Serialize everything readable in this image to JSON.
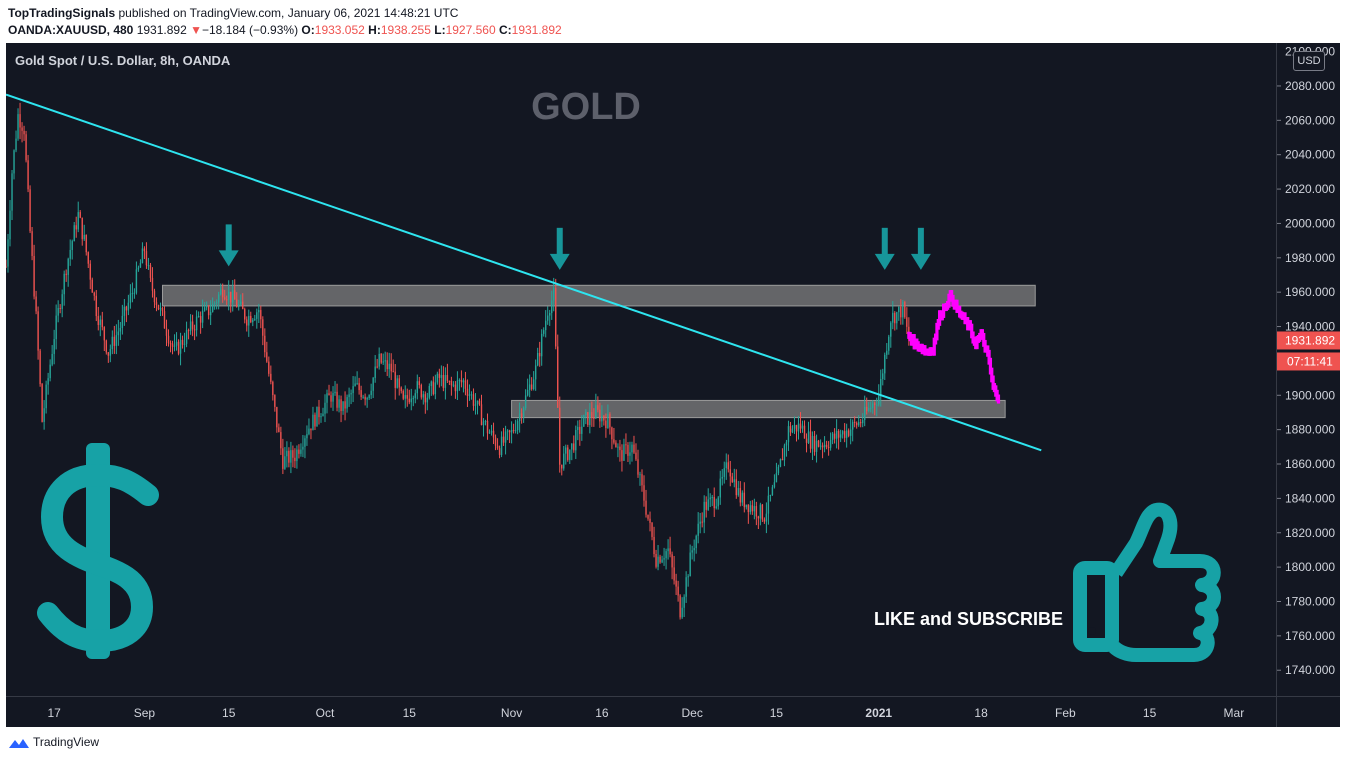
{
  "header": {
    "author": "TopTradingSignals",
    "published": "published on TradingView.com, January 06, 2021 14:48:21 UTC",
    "symbol": "OANDA:XAUUSD, 480",
    "last": "1931.892",
    "change_arrow": "▼",
    "change": "−18.184 (−0.93%)",
    "o_label": "O:",
    "o_value": "1933.052",
    "h_label": "H:",
    "h_value": "1938.255",
    "l_label": "L:",
    "l_value": "1927.560",
    "c_label": "C:",
    "c_value": "1931.892"
  },
  "chart_title": "Gold Spot / U.S. Dollar, 8h, OANDA",
  "currency_button": "USD",
  "footer_brand": "TradingView",
  "colors": {
    "background": "#131722",
    "up": "#26a69a",
    "down": "#ef5350",
    "trendline": "#2ee5f0",
    "projection": "#ff00ff",
    "arrow": "#17969a",
    "zone": "#808080",
    "price_label": "#ef5350"
  },
  "chart_data": {
    "type": "candlestick",
    "title": "GOLD",
    "y_range": [
      1725,
      2105
    ],
    "y_ticks": [
      "1740.000",
      "1760.000",
      "1780.000",
      "1800.000",
      "1820.000",
      "1840.000",
      "1860.000",
      "1880.000",
      "1900.000",
      "1920.000",
      "1940.000",
      "1960.000",
      "1980.000",
      "2000.000",
      "2020.000",
      "2040.000",
      "2060.000",
      "2080.000"
    ],
    "y_top_partial": "2100.000",
    "x_range": [
      "2020-08-09",
      "2021-03-08"
    ],
    "x_ticks": [
      {
        "label": "17",
        "date": "2020-08-17"
      },
      {
        "label": "Sep",
        "date": "2020-09-01"
      },
      {
        "label": "15",
        "date": "2020-09-15"
      },
      {
        "label": "Oct",
        "date": "2020-10-01"
      },
      {
        "label": "15",
        "date": "2020-10-15"
      },
      {
        "label": "Nov",
        "date": "2020-11-01"
      },
      {
        "label": "16",
        "date": "2020-11-16"
      },
      {
        "label": "Dec",
        "date": "2020-12-01"
      },
      {
        "label": "15",
        "date": "2020-12-15"
      },
      {
        "label": "2021",
        "date": "2021-01-01"
      },
      {
        "label": "18",
        "date": "2021-01-18"
      },
      {
        "label": "Feb",
        "date": "2021-02-01"
      },
      {
        "label": "15",
        "date": "2021-02-15"
      },
      {
        "label": "Mar",
        "date": "2021-03-01"
      }
    ],
    "price_path": [
      [
        "2020-08-09",
        1975
      ],
      [
        "2020-08-10",
        2030
      ],
      [
        "2020-08-11",
        2063
      ],
      [
        "2020-08-12",
        2055
      ],
      [
        "2020-08-13",
        1995
      ],
      [
        "2020-08-14",
        1945
      ],
      [
        "2020-08-15",
        1885
      ],
      [
        "2020-08-17",
        1935
      ],
      [
        "2020-08-19",
        1975
      ],
      [
        "2020-08-21",
        2005
      ],
      [
        "2020-08-22",
        1990
      ],
      [
        "2020-08-24",
        1950
      ],
      [
        "2020-08-26",
        1925
      ],
      [
        "2020-08-28",
        1940
      ],
      [
        "2020-08-30",
        1960
      ],
      [
        "2020-09-01",
        1985
      ],
      [
        "2020-09-02",
        1965
      ],
      [
        "2020-09-04",
        1945
      ],
      [
        "2020-09-06",
        1925
      ],
      [
        "2020-09-08",
        1935
      ],
      [
        "2020-09-10",
        1945
      ],
      [
        "2020-09-12",
        1950
      ],
      [
        "2020-09-14",
        1962
      ],
      [
        "2020-09-16",
        1955
      ],
      [
        "2020-09-18",
        1945
      ],
      [
        "2020-09-20",
        1950
      ],
      [
        "2020-09-22",
        1905
      ],
      [
        "2020-09-24",
        1862
      ],
      [
        "2020-09-26",
        1865
      ],
      [
        "2020-09-28",
        1880
      ],
      [
        "2020-09-30",
        1890
      ],
      [
        "2020-10-02",
        1900
      ],
      [
        "2020-10-04",
        1892
      ],
      [
        "2020-10-06",
        1905
      ],
      [
        "2020-10-08",
        1900
      ],
      [
        "2020-10-10",
        1920
      ],
      [
        "2020-10-12",
        1915
      ],
      [
        "2020-10-14",
        1895
      ],
      [
        "2020-10-16",
        1905
      ],
      [
        "2020-10-18",
        1900
      ],
      [
        "2020-10-20",
        1910
      ],
      [
        "2020-10-22",
        1905
      ],
      [
        "2020-10-24",
        1908
      ],
      [
        "2020-10-26",
        1895
      ],
      [
        "2020-10-28",
        1880
      ],
      [
        "2020-10-30",
        1870
      ],
      [
        "2020-11-01",
        1878
      ],
      [
        "2020-11-03",
        1895
      ],
      [
        "2020-11-05",
        1915
      ],
      [
        "2020-11-07",
        1950
      ],
      [
        "2020-11-08",
        1958
      ],
      [
        "2020-11-09",
        1860
      ],
      [
        "2020-11-11",
        1870
      ],
      [
        "2020-11-13",
        1885
      ],
      [
        "2020-11-15",
        1890
      ],
      [
        "2020-11-17",
        1885
      ],
      [
        "2020-11-19",
        1865
      ],
      [
        "2020-11-21",
        1870
      ],
      [
        "2020-11-23",
        1840
      ],
      [
        "2020-11-25",
        1805
      ],
      [
        "2020-11-27",
        1810
      ],
      [
        "2020-11-29",
        1775
      ],
      [
        "2020-12-01",
        1810
      ],
      [
        "2020-12-03",
        1835
      ],
      [
        "2020-12-05",
        1840
      ],
      [
        "2020-12-07",
        1860
      ],
      [
        "2020-12-09",
        1840
      ],
      [
        "2020-12-11",
        1835
      ],
      [
        "2020-12-13",
        1830
      ],
      [
        "2020-12-15",
        1850
      ],
      [
        "2020-12-17",
        1880
      ],
      [
        "2020-12-19",
        1882
      ],
      [
        "2020-12-21",
        1872
      ],
      [
        "2020-12-23",
        1872
      ],
      [
        "2020-12-25",
        1876
      ],
      [
        "2020-12-27",
        1880
      ],
      [
        "2020-12-29",
        1885
      ],
      [
        "2020-12-31",
        1895
      ],
      [
        "2021-01-01",
        1900
      ],
      [
        "2021-01-03",
        1945
      ],
      [
        "2021-01-05",
        1950
      ],
      [
        "2021-01-06",
        1931.892
      ]
    ],
    "projection_path": [
      [
        "2021-01-06",
        1935
      ],
      [
        "2021-01-07",
        1930
      ],
      [
        "2021-01-08",
        1928
      ],
      [
        "2021-01-09",
        1925
      ],
      [
        "2021-01-10",
        1927
      ],
      [
        "2021-01-11",
        1945
      ],
      [
        "2021-01-12",
        1952
      ],
      [
        "2021-01-13",
        1958
      ],
      [
        "2021-01-14",
        1950
      ],
      [
        "2021-01-15",
        1945
      ],
      [
        "2021-01-16",
        1940
      ],
      [
        "2021-01-17",
        1930
      ],
      [
        "2021-01-18",
        1935
      ],
      [
        "2021-01-19",
        1925
      ],
      [
        "2021-01-20",
        1905
      ],
      [
        "2021-01-21",
        1895
      ]
    ],
    "trendline": [
      [
        "2020-08-09",
        2075
      ],
      [
        "2021-01-28",
        1868
      ]
    ],
    "zones": [
      {
        "from": "2020-09-04",
        "to": "2021-01-27",
        "low": 1952,
        "high": 1964
      },
      {
        "from": "2020-11-01",
        "to": "2021-01-22",
        "low": 1887,
        "high": 1897
      }
    ],
    "arrows": [
      {
        "date": "2020-09-15",
        "price": 1975
      },
      {
        "date": "2020-11-09",
        "price": 1973
      },
      {
        "date": "2021-01-02",
        "price": 1973
      },
      {
        "date": "2021-01-08",
        "price": 1973
      }
    ],
    "last_price_label": "1931.892",
    "countdown_label": "07:11:41",
    "annotation": "LIKE and SUBSCRIBE"
  }
}
